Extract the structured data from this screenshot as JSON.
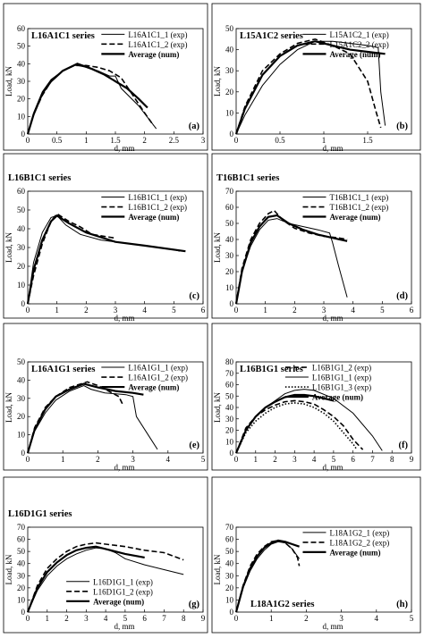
{
  "ylabel": "Load, kN",
  "xlabel": "d, mm",
  "chart_data": [
    {
      "type": "line",
      "title": "L16A1C1 series",
      "panel_label": "(a)",
      "xlim": [
        0,
        3
      ],
      "ylim": [
        0,
        60
      ],
      "xticks": [
        0,
        0.5,
        1,
        1.5,
        2,
        2.5,
        3
      ],
      "yticks": [
        0,
        10,
        20,
        30,
        40,
        50,
        60
      ],
      "series": [
        {
          "name": "L16A1C1_1 (exp)",
          "style": "thin",
          "x": [
            0,
            0.1,
            0.25,
            0.4,
            0.6,
            0.8,
            0.85,
            1.0,
            1.2,
            1.4,
            1.5,
            1.6,
            1.9,
            2.2
          ],
          "y": [
            0,
            12,
            24,
            31,
            36,
            39,
            39,
            38,
            36,
            33,
            33,
            26,
            16,
            3
          ]
        },
        {
          "name": "L16A1C1_2 (exp)",
          "style": "dashed",
          "x": [
            0,
            0.1,
            0.25,
            0.4,
            0.6,
            0.8,
            1.0,
            1.2,
            1.4,
            1.6,
            1.8,
            2.0,
            2.15
          ],
          "y": [
            0,
            11,
            22,
            30,
            36,
            39,
            39,
            38,
            36,
            32,
            22,
            12,
            5
          ]
        },
        {
          "name": "Average (num)",
          "style": "thick",
          "x": [
            0,
            0.1,
            0.25,
            0.4,
            0.6,
            0.85,
            1.1,
            1.3,
            1.5,
            1.7,
            1.9,
            2.05
          ],
          "y": [
            0,
            11,
            23,
            30,
            36,
            40,
            37,
            34,
            30,
            26,
            20,
            15
          ]
        }
      ]
    },
    {
      "type": "line",
      "title": "L15A1C2 series",
      "panel_label": "(b)",
      "xlim": [
        0,
        2
      ],
      "ylim": [
        0,
        50
      ],
      "xticks": [
        0,
        0.5,
        1,
        1.5
      ],
      "yticks": [
        0,
        10,
        20,
        30,
        40,
        50
      ],
      "series": [
        {
          "name": "L15A1C2_1 (exp)",
          "style": "thin",
          "x": [
            0,
            0.1,
            0.3,
            0.5,
            0.7,
            0.9,
            1.1,
            1.3,
            1.5,
            1.62,
            1.65,
            1.7
          ],
          "y": [
            0,
            9,
            23,
            33,
            40,
            44,
            44,
            43,
            42,
            41,
            20,
            4
          ]
        },
        {
          "name": "L15A1C2_2 (exp)",
          "style": "dashed",
          "x": [
            0,
            0.1,
            0.3,
            0.5,
            0.7,
            0.9,
            1.1,
            1.3,
            1.5,
            1.6,
            1.65
          ],
          "y": [
            0,
            13,
            30,
            38,
            43,
            45,
            42,
            38,
            25,
            10,
            3
          ]
        },
        {
          "name": "Average (num)",
          "style": "thick",
          "x": [
            0,
            0.1,
            0.3,
            0.5,
            0.7,
            0.9,
            1.1,
            1.3,
            1.5,
            1.7
          ],
          "y": [
            0,
            12,
            28,
            37,
            42,
            44,
            42,
            40,
            39,
            38
          ]
        }
      ]
    },
    {
      "type": "line",
      "title": "L16B1C1 series",
      "panel_label": "(c)",
      "xlim": [
        0,
        6
      ],
      "ylim": [
        0,
        60
      ],
      "xticks": [
        0,
        1,
        2,
        3,
        4,
        5,
        6
      ],
      "yticks": [
        0,
        10,
        20,
        30,
        40,
        50,
        60
      ],
      "series": [
        {
          "name": "L16B1C1_1 (exp)",
          "style": "thin",
          "x": [
            0,
            0.2,
            0.5,
            0.8,
            1.0,
            1.3,
            1.8,
            2.5,
            3.5,
            4.5,
            5.0,
            5.2
          ],
          "y": [
            0,
            22,
            38,
            46,
            47,
            42,
            37,
            34,
            32,
            30,
            29,
            28
          ]
        },
        {
          "name": "L16B1C1_2 (exp)",
          "style": "dashed",
          "x": [
            0,
            0.2,
            0.5,
            0.8,
            1.0,
            1.4,
            1.8,
            2.2,
            3.0
          ],
          "y": [
            0,
            15,
            32,
            44,
            48,
            44,
            41,
            37,
            35
          ]
        },
        {
          "name": "Average (num)",
          "style": "thick",
          "x": [
            0,
            0.2,
            0.5,
            0.8,
            1.0,
            1.4,
            2.0,
            3.0,
            4.0,
            5.4
          ],
          "y": [
            0,
            18,
            34,
            44,
            47,
            43,
            38,
            33,
            31,
            28
          ]
        }
      ]
    },
    {
      "type": "line",
      "title": "T16B1C1 series",
      "panel_label": "(d)",
      "xlim": [
        0,
        6
      ],
      "ylim": [
        0,
        70
      ],
      "xticks": [
        0,
        1,
        2,
        3,
        4,
        5,
        6
      ],
      "yticks": [
        0,
        10,
        20,
        30,
        40,
        50,
        60,
        70
      ],
      "series": [
        {
          "name": "T16B1C1_1 (exp)",
          "style": "thin",
          "x": [
            0,
            0.2,
            0.5,
            0.8,
            1.1,
            1.4,
            1.8,
            2.3,
            2.8,
            3.2,
            3.3,
            3.5,
            3.8
          ],
          "y": [
            0,
            20,
            36,
            46,
            52,
            53,
            50,
            48,
            46,
            44,
            38,
            24,
            4
          ]
        },
        {
          "name": "T16B1C1_2 (exp)",
          "style": "dashed",
          "x": [
            0,
            0.2,
            0.5,
            0.8,
            1.1,
            1.3,
            1.6,
            2.0,
            2.5,
            3.0,
            3.5,
            3.8
          ],
          "y": [
            0,
            22,
            40,
            50,
            56,
            58,
            52,
            47,
            44,
            42,
            41,
            40
          ]
        },
        {
          "name": "Average (num)",
          "style": "thick",
          "x": [
            0,
            0.2,
            0.5,
            0.8,
            1.1,
            1.4,
            1.8,
            2.3,
            2.8,
            3.3,
            3.8
          ],
          "y": [
            0,
            20,
            38,
            48,
            54,
            55,
            50,
            46,
            43,
            41,
            39
          ]
        }
      ]
    },
    {
      "type": "line",
      "title": "L16A1G1 series",
      "panel_label": "(e)",
      "xlim": [
        0,
        5
      ],
      "ylim": [
        0,
        50
      ],
      "xticks": [
        0,
        1,
        2,
        3,
        4,
        5
      ],
      "yticks": [
        0,
        10,
        20,
        30,
        40,
        50
      ],
      "series": [
        {
          "name": "L16A1G1_1 (exp)",
          "style": "thin",
          "x": [
            0,
            0.2,
            0.5,
            0.8,
            1.2,
            1.6,
            1.8,
            2.2,
            2.8,
            3.0,
            3.1,
            3.5,
            3.7
          ],
          "y": [
            0,
            12,
            22,
            29,
            34,
            37,
            35,
            33,
            32,
            31,
            20,
            8,
            2
          ]
        },
        {
          "name": "L16A1G1_2 (exp)",
          "style": "dashed",
          "x": [
            0,
            0.2,
            0.5,
            0.8,
            1.2,
            1.7,
            2.0,
            2.3,
            2.6,
            2.7
          ],
          "y": [
            0,
            14,
            25,
            31,
            36,
            39,
            37,
            34,
            31,
            27
          ]
        },
        {
          "name": "Average (num)",
          "style": "thick",
          "x": [
            0,
            0.2,
            0.5,
            0.8,
            1.2,
            1.6,
            2.0,
            2.5,
            3.0,
            3.3
          ],
          "y": [
            0,
            13,
            24,
            31,
            35,
            38,
            36,
            34,
            33,
            32
          ]
        }
      ]
    },
    {
      "type": "line",
      "title": "L16B1G1 series",
      "panel_label": "(f)",
      "xlim": [
        0,
        9
      ],
      "ylim": [
        0,
        80
      ],
      "xticks": [
        0,
        1,
        2,
        3,
        4,
        5,
        6,
        7,
        8,
        9
      ],
      "yticks": [
        0,
        10,
        20,
        30,
        40,
        50,
        60,
        70,
        80
      ],
      "series": [
        {
          "name": "L16B1G1_2 (exp)",
          "style": "dashed",
          "x": [
            0,
            0.5,
            1.0,
            1.5,
            2.0,
            2.5,
            3.0,
            3.5,
            4.0,
            4.5,
            5.0,
            5.5,
            6.0,
            6.5
          ],
          "y": [
            0,
            22,
            32,
            38,
            42,
            45,
            46,
            45,
            43,
            38,
            32,
            24,
            12,
            3
          ]
        },
        {
          "name": "L16B1G1_1 (exp)",
          "style": "thin",
          "x": [
            0,
            0.5,
            1.0,
            1.5,
            2.0,
            2.5,
            3.0,
            3.5,
            4.0,
            5.0,
            6.0,
            7.0,
            7.5
          ],
          "y": [
            0,
            20,
            32,
            40,
            46,
            52,
            55,
            56,
            55,
            48,
            35,
            15,
            2
          ]
        },
        {
          "name": "L16B1G1_3 (exp)",
          "style": "dotted",
          "x": [
            0,
            0.5,
            1.0,
            1.5,
            2.0,
            2.5,
            3.0,
            3.5,
            4.0,
            4.5,
            5.0,
            5.5,
            6.0,
            6.2
          ],
          "y": [
            0,
            18,
            28,
            35,
            40,
            43,
            44,
            43,
            40,
            35,
            28,
            18,
            8,
            3
          ]
        },
        {
          "name": "Average (num)",
          "style": "thick",
          "x": [
            0,
            0.5,
            1.0,
            1.5,
            2.0,
            2.5,
            3.0,
            3.5,
            4.0,
            4.5,
            5.0
          ],
          "y": [
            0,
            20,
            32,
            40,
            45,
            49,
            51,
            51,
            50,
            48,
            46
          ]
        }
      ]
    },
    {
      "type": "line",
      "title": "L16D1G1 series",
      "panel_label": "(g)",
      "xlim": [
        0,
        9
      ],
      "ylim": [
        0,
        70
      ],
      "xticks": [
        0,
        1,
        2,
        3,
        4,
        5,
        6,
        7,
        8,
        9
      ],
      "yticks": [
        0,
        10,
        20,
        30,
        40,
        50,
        60,
        70
      ],
      "series": [
        {
          "name": "L16D1G1_1 (exp)",
          "style": "thin",
          "x": [
            0,
            0.5,
            1.0,
            1.5,
            2.0,
            2.5,
            3.0,
            3.5,
            4.0,
            4.5,
            5.0,
            6.0,
            7.0,
            8.0
          ],
          "y": [
            0,
            18,
            30,
            38,
            44,
            48,
            51,
            53,
            52,
            49,
            44,
            39,
            35,
            31
          ]
        },
        {
          "name": "L16D1G1_2 (exp)",
          "style": "dashed",
          "x": [
            0,
            0.5,
            1.0,
            1.5,
            2.0,
            2.5,
            3.0,
            3.5,
            4.0,
            5.0,
            6.0,
            7.0,
            8.0
          ],
          "y": [
            0,
            22,
            36,
            44,
            50,
            54,
            56,
            57,
            56,
            54,
            51,
            49,
            43
          ]
        },
        {
          "name": "Average (num)",
          "style": "thick",
          "x": [
            0,
            0.5,
            1.0,
            1.5,
            2.0,
            2.5,
            3.0,
            3.5,
            4.0,
            5.0,
            6.0
          ],
          "y": [
            0,
            20,
            33,
            41,
            47,
            51,
            53,
            54,
            52,
            48,
            45
          ]
        }
      ]
    },
    {
      "type": "line",
      "title": "L18A1G2 series",
      "panel_label": "(h)",
      "xlim": [
        0,
        5
      ],
      "ylim": [
        0,
        70
      ],
      "xticks": [
        0,
        1,
        2,
        3,
        4,
        5
      ],
      "yticks": [
        0,
        10,
        20,
        30,
        40,
        50,
        60,
        70
      ],
      "series": [
        {
          "name": "L18A1G2_1 (exp)",
          "style": "thin",
          "x": [
            0,
            0.2,
            0.4,
            0.6,
            0.8,
            1.0,
            1.2,
            1.4,
            1.6,
            1.8
          ],
          "y": [
            0,
            20,
            34,
            44,
            51,
            56,
            58,
            57,
            52,
            44
          ]
        },
        {
          "name": "L18A1G2_2 (exp)",
          "style": "dashed",
          "x": [
            0,
            0.2,
            0.4,
            0.6,
            0.8,
            1.0,
            1.2,
            1.4,
            1.6,
            1.75,
            1.8
          ],
          "y": [
            0,
            22,
            38,
            48,
            54,
            58,
            59,
            57,
            52,
            45,
            38
          ]
        },
        {
          "name": "Average (num)",
          "style": "thick",
          "x": [
            0,
            0.2,
            0.4,
            0.6,
            0.8,
            1.0,
            1.2,
            1.4,
            1.6,
            1.8
          ],
          "y": [
            0,
            21,
            36,
            46,
            53,
            57,
            59,
            58,
            56,
            54
          ]
        }
      ]
    }
  ]
}
